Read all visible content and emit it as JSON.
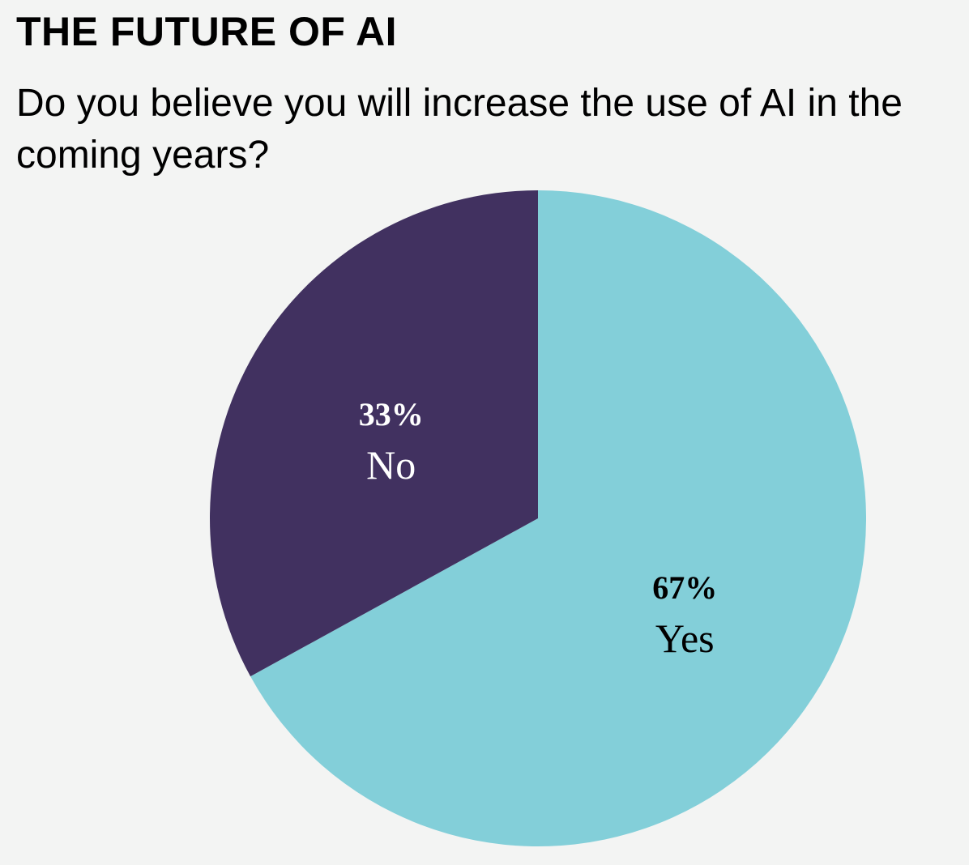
{
  "header": {
    "title": "THE FUTURE OF AI",
    "subtitle": "Do you believe you will increase the use of AI in the coming years?"
  },
  "chart_data": {
    "type": "pie",
    "title": "THE FUTURE OF AI",
    "subtitle": "Do you believe you will increase the use of AI in the coming years?",
    "start_angle_deg": 0,
    "direction": "clockwise",
    "slices": [
      {
        "label": "Yes",
        "value": 67,
        "value_label": "67%",
        "color": "#83cfd9",
        "text_color": "#000000"
      },
      {
        "label": "No",
        "value": 33,
        "value_label": "33%",
        "color": "#413160",
        "text_color": "#ffffff"
      }
    ],
    "legend": "none"
  }
}
